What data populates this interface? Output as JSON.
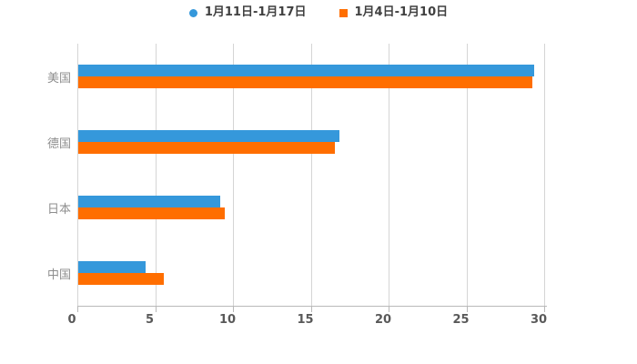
{
  "legend": [
    {
      "label": "1月11日-1月17日",
      "marker": "circle",
      "color": "#3598db"
    },
    {
      "label": "1月4日-1月10日",
      "marker": "square",
      "color": "#ff6e00"
    }
  ],
  "chart_data": {
    "type": "bar",
    "orientation": "horizontal",
    "title": "",
    "xlabel": "",
    "ylabel": "",
    "categories": [
      "美国",
      "德国",
      "日本",
      "中国"
    ],
    "series": [
      {
        "name": "1月11日-1月17日",
        "color": "#3598db",
        "values": [
          29.3,
          16.8,
          9.1,
          4.3
        ]
      },
      {
        "name": "1月4日-1月10日",
        "color": "#ff6e00",
        "values": [
          29.2,
          16.5,
          9.4,
          5.5
        ]
      }
    ],
    "xlim": [
      0,
      30
    ],
    "xticks": [
      0,
      5,
      10,
      15,
      20,
      25,
      30
    ],
    "grid": true,
    "legend_position": "top",
    "background": "#ffffff"
  },
  "colors": {
    "grid_line": "#d5d5d5",
    "axis_line": "#b9b9b9",
    "tick_label": "#595959",
    "category_label": "#8e8e8e",
    "legend_text": "#404040"
  }
}
